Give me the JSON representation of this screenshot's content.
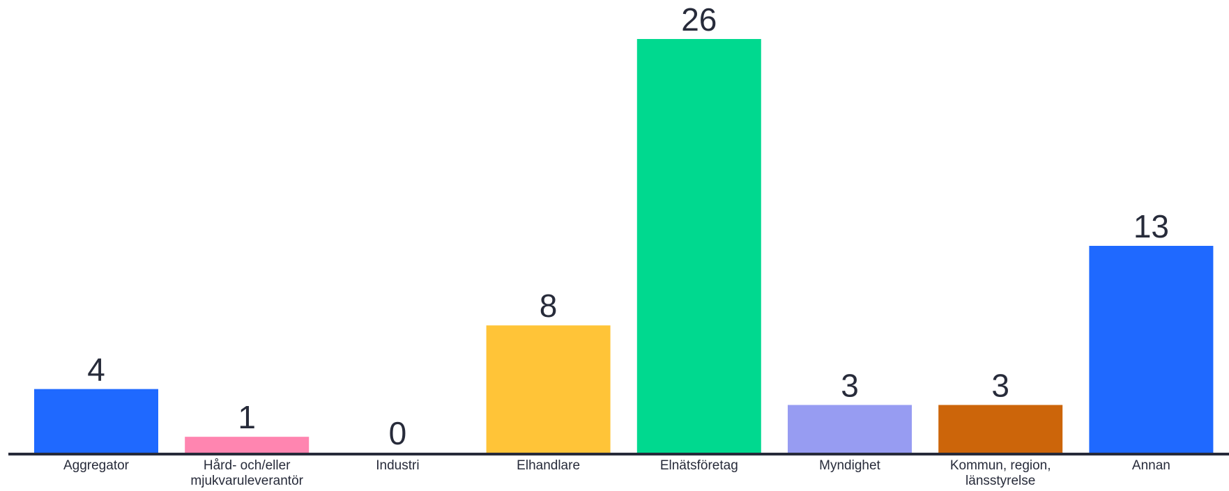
{
  "chart_data": {
    "type": "bar",
    "categories": [
      "Aggregator",
      "Hård- och/eller mjukvaruleverantör",
      "Industri",
      "Elhandlare",
      "Elnätsföretag",
      "Myndighet",
      "Kommun, region, länsstyrelse",
      "Annan"
    ],
    "category_lines": [
      [
        "Aggregator"
      ],
      [
        "Hård- och/eller",
        "mjukvaruleverantör"
      ],
      [
        "Industri"
      ],
      [
        "Elhandlare"
      ],
      [
        "Elnätsföretag"
      ],
      [
        "Myndighet"
      ],
      [
        "Kommun, region,",
        "länsstyrelse"
      ],
      [
        "Annan"
      ]
    ],
    "values": [
      4,
      1,
      0,
      8,
      26,
      3,
      3,
      13
    ],
    "data_labels": [
      "4",
      "1",
      "0",
      "8",
      "26",
      "3",
      "3",
      "13"
    ],
    "colors": [
      "#1f69ff",
      "#ff85b0",
      "#1f69ff",
      "#ffc438",
      "#00d98f",
      "#979cf2",
      "#cc650a",
      "#1f69ff"
    ],
    "axis_color": "#272b3a",
    "title": "",
    "xlabel": "",
    "ylabel": "",
    "ylim": [
      0,
      26
    ],
    "grid": false,
    "legend": "none"
  }
}
